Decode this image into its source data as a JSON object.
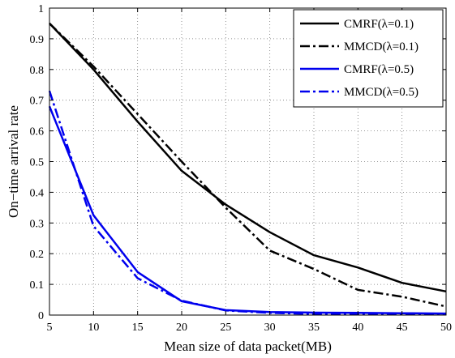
{
  "chart_data": {
    "type": "line",
    "xlabel": "Mean size of data packet(MB)",
    "ylabel": "On−time arrival rate",
    "xlim": [
      5,
      50
    ],
    "ylim": [
      0,
      1
    ],
    "x_ticks": [
      "5",
      "10",
      "15",
      "20",
      "25",
      "30",
      "35",
      "40",
      "45",
      "50"
    ],
    "y_ticks": [
      "0",
      "0.1",
      "0.2",
      "0.3",
      "0.4",
      "0.5",
      "0.6",
      "0.7",
      "0.8",
      "0.9",
      "1"
    ],
    "grid": true,
    "legend_position": "top-right",
    "x": [
      5,
      10,
      15,
      20,
      25,
      30,
      35,
      40,
      45,
      50
    ],
    "series": [
      {
        "name": "CMRF(λ=0.1)",
        "color": "#000000",
        "style": "solid",
        "values": [
          0.95,
          0.8,
          0.63,
          0.47,
          0.36,
          0.27,
          0.195,
          0.155,
          0.105,
          0.077
        ]
      },
      {
        "name": "MMCD(λ=0.1)",
        "color": "#000000",
        "style": "dashdot",
        "values": [
          0.95,
          0.81,
          0.655,
          0.5,
          0.35,
          0.21,
          0.15,
          0.082,
          0.06,
          0.028
        ]
      },
      {
        "name": "CMRF(λ=0.5)",
        "color": "#0000ee",
        "style": "solid",
        "values": [
          0.68,
          0.325,
          0.14,
          0.045,
          0.016,
          0.01,
          0.008,
          0.007,
          0.006,
          0.005
        ]
      },
      {
        "name": "MMCD(λ=0.5)",
        "color": "#0000ee",
        "style": "dashdot",
        "values": [
          0.73,
          0.29,
          0.12,
          0.047,
          0.015,
          0.007,
          0.004,
          0.003,
          0.002,
          0.002
        ]
      }
    ]
  }
}
